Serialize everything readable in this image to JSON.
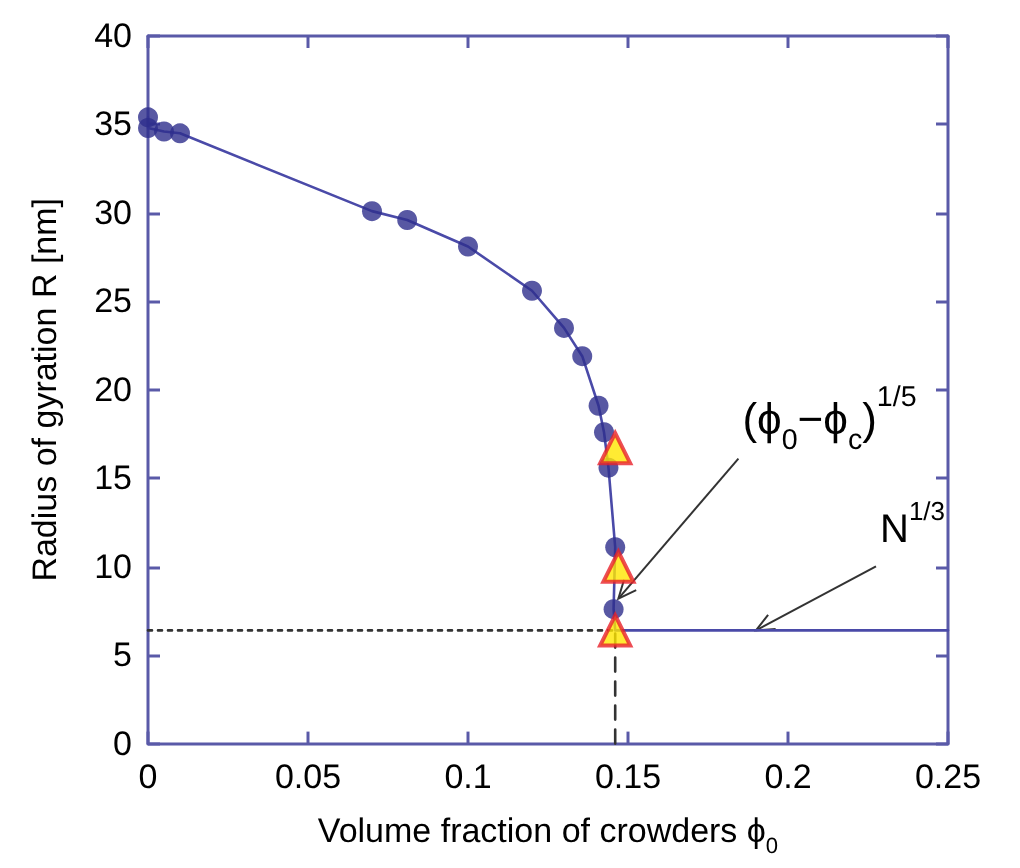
{
  "chart_data": {
    "type": "line",
    "xlabel": "Volume fraction of crowders ϕ$_{0}$",
    "ylabel": "Radius of gyration R [nm]",
    "xlim": [
      0,
      0.25
    ],
    "xticks": [
      0,
      0.05,
      0.1,
      0.15,
      0.2,
      0.25
    ],
    "ylim": [
      0,
      40
    ],
    "yticks": [
      0,
      5,
      10,
      15,
      20,
      25,
      30,
      35,
      40
    ],
    "grid": false,
    "series": [
      {
        "marker": "none",
        "line_style": "solid",
        "color": "#4a4aa8",
        "x": [
          0,
          0,
          0.005,
          0.01,
          0.07,
          0.081,
          0.1,
          0.12,
          0.13,
          0.1357,
          0.1408,
          0.1425,
          0.1439,
          0.146,
          0.1455,
          0.146,
          0.25
        ],
        "values": [
          35.4,
          34.8,
          34.6,
          34.5,
          30.1,
          29.6,
          28.1,
          25.6,
          23.5,
          21.9,
          19.1,
          17.6,
          15.6,
          11.1,
          7.6,
          6.4,
          6.4
        ]
      },
      {
        "type": "scatter",
        "marker": "circle",
        "color": "#2e2e8c",
        "x": [
          0,
          0,
          0.005,
          0.01,
          0.07,
          0.081,
          0.1,
          0.12,
          0.13,
          0.1357,
          0.1408,
          0.1425,
          0.1439,
          0.146,
          0.1455
        ],
        "values": [
          35.4,
          34.8,
          34.6,
          34.5,
          30.1,
          29.6,
          28.1,
          25.6,
          23.5,
          21.9,
          19.1,
          17.6,
          15.6,
          11.1,
          7.6
        ]
      },
      {
        "type": "scatter",
        "marker": "triangle",
        "color": "#ffe600",
        "x": [
          0.146,
          0.147,
          0.146
        ],
        "values": [
          16.7,
          10.0,
          6.4
        ]
      },
      {
        "type": "line",
        "marker": "none",
        "line_style": "dotted",
        "color": "#333333",
        "x": [
          0,
          0.146
        ],
        "values": [
          6.4,
          6.4
        ]
      },
      {
        "type": "line",
        "marker": "none",
        "line_style": "dashed",
        "color": "#333333",
        "x": [
          0.146,
          0.146
        ],
        "values": [
          0,
          6.4
        ]
      }
    ],
    "annotations": [
      {
        "text": "(ϕ$_{0}$−ϕ$_{c}$)$^{1/5}$",
        "x": 0.147,
        "y": 8.2
      },
      {
        "text": "N$^{1/3}$",
        "x": 0.19,
        "y": 6.4
      }
    ]
  }
}
